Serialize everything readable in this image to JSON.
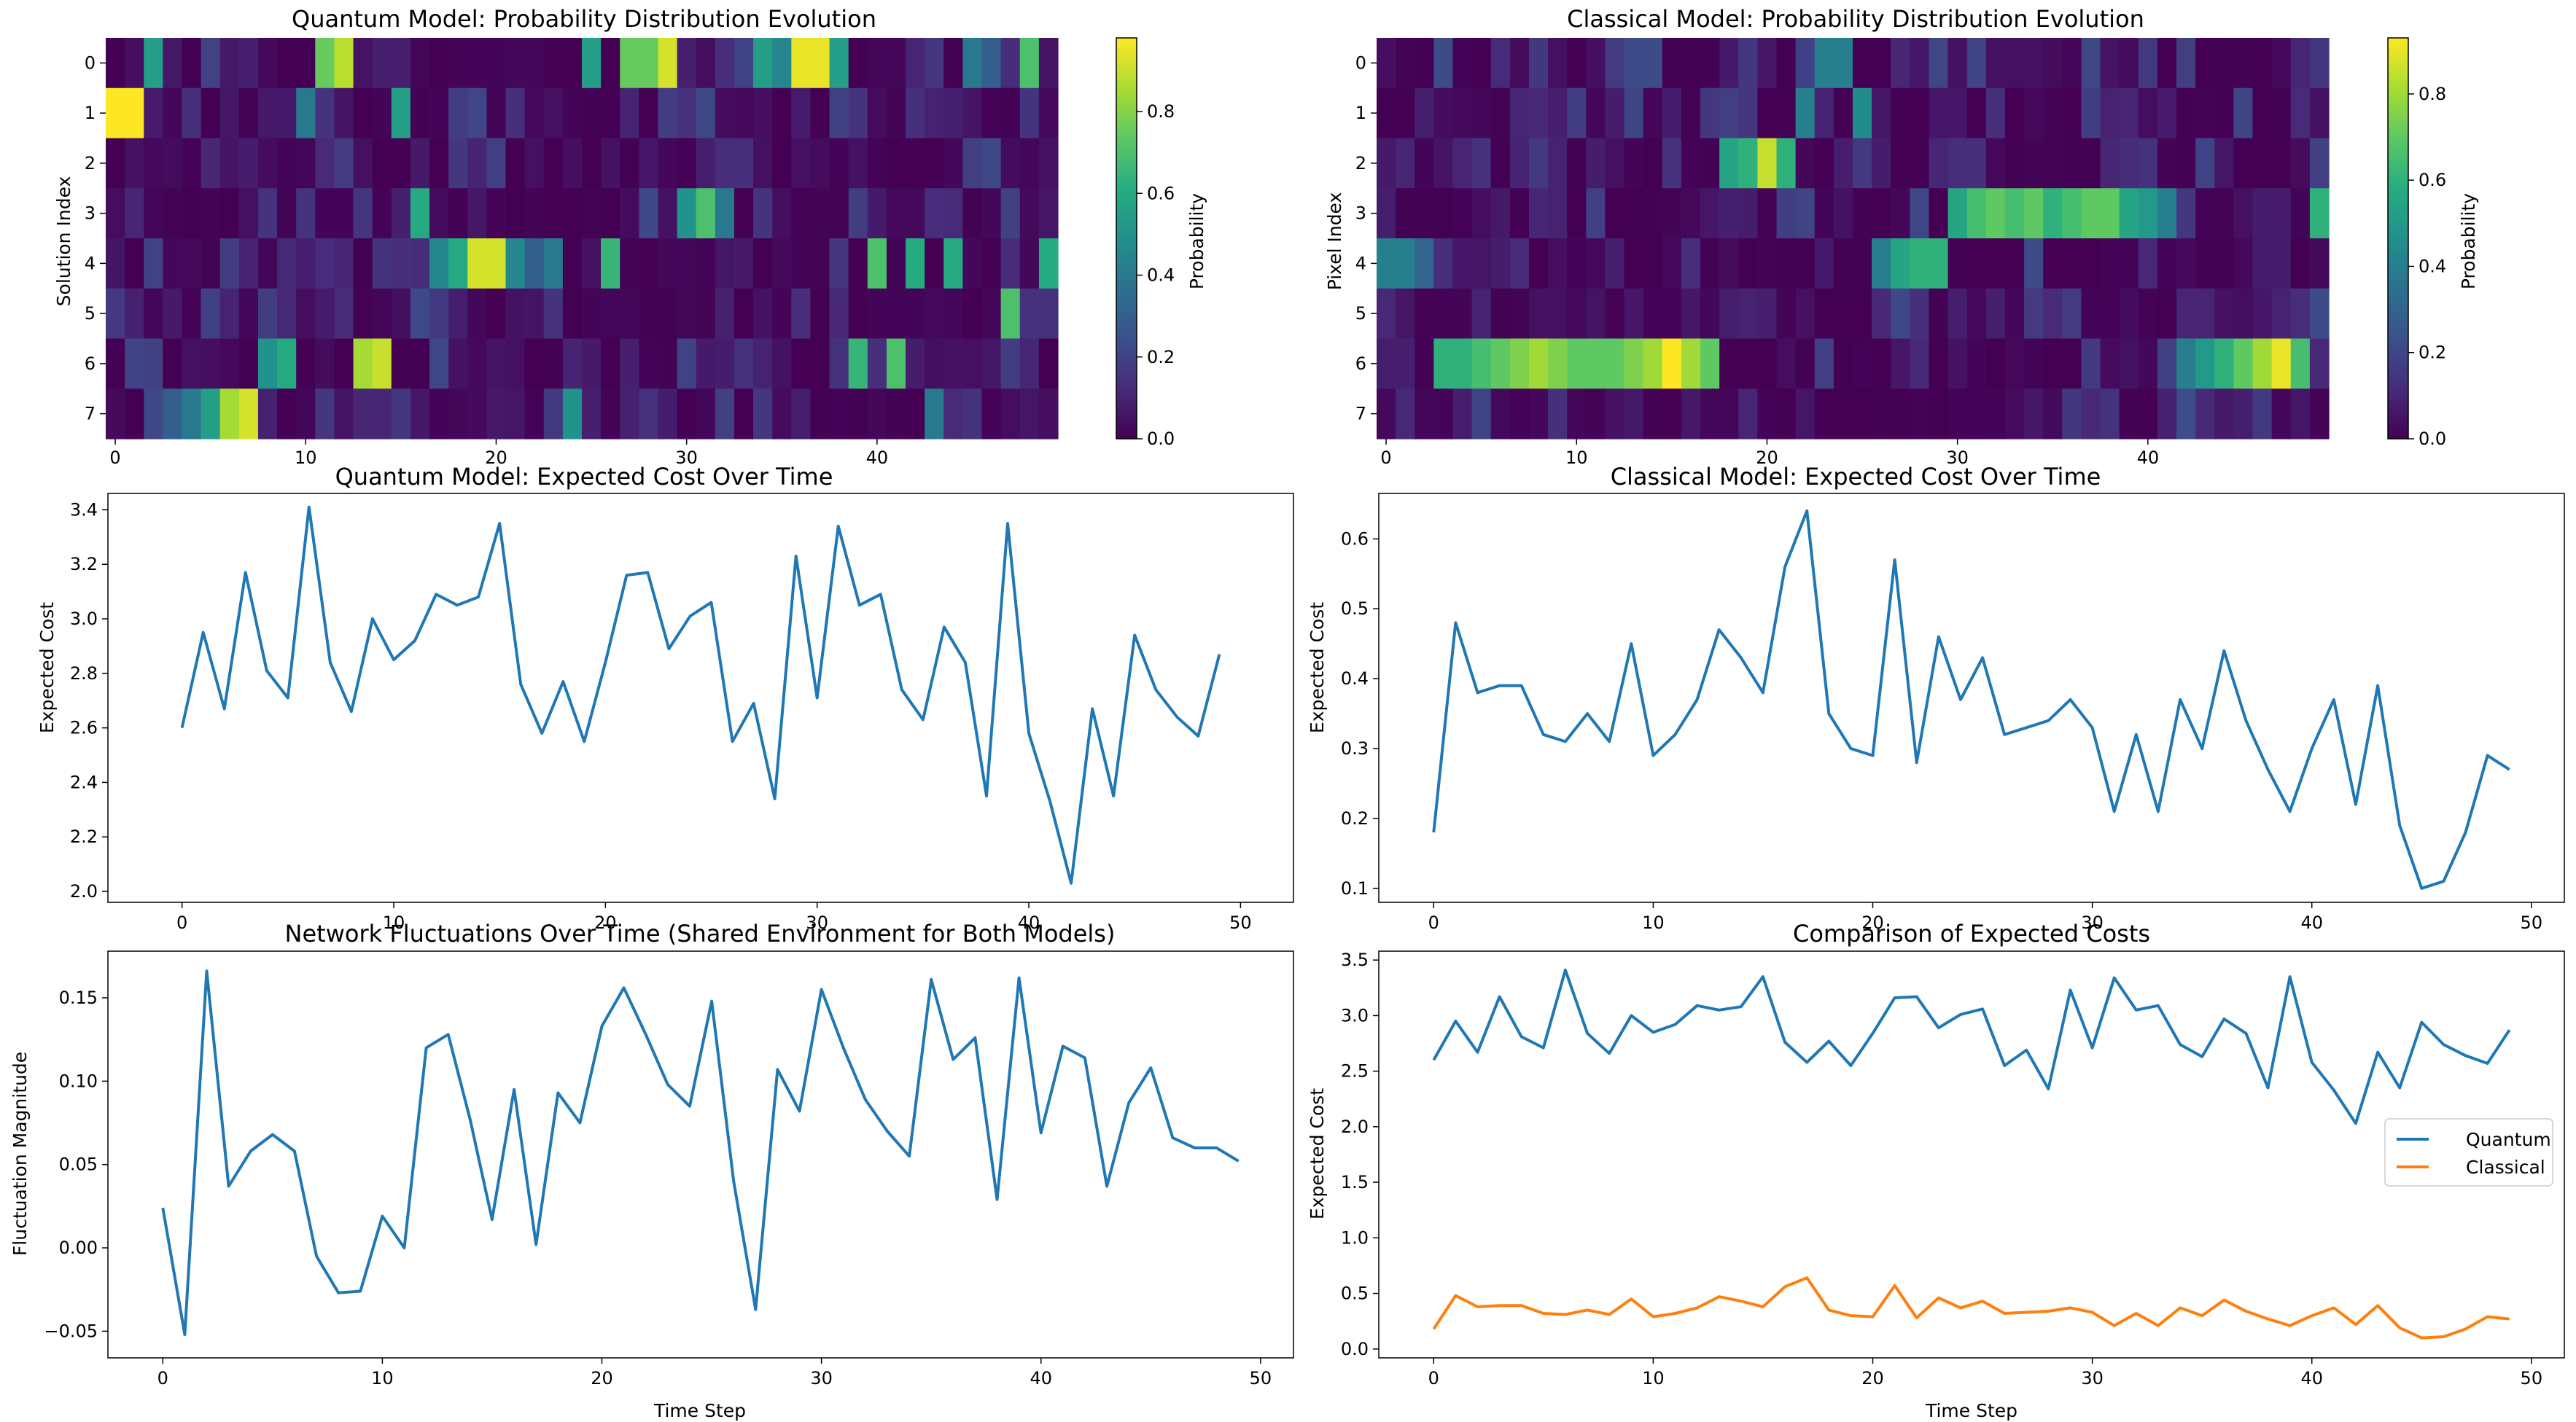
{
  "chart_data": [
    {
      "type": "heatmap",
      "title": "Quantum Model: Probability Distribution Evolution",
      "xlabel": "",
      "ylabel": "Solution Index",
      "xticks": [
        0,
        10,
        20,
        30,
        40
      ],
      "yticks": [
        0,
        1,
        2,
        3,
        4,
        5,
        6,
        7
      ],
      "colorbar": {
        "label": "Probability",
        "ticks": [
          0.0,
          0.2,
          0.4,
          0.6,
          0.8
        ],
        "tick_labels": [
          "0.0",
          "0.2",
          "0.4",
          "0.6",
          "0.8"
        ],
        "range": [
          0,
          0.98
        ]
      },
      "colormap": "viridis",
      "dominant_per_step": [
        1,
        1,
        0,
        7,
        7,
        7,
        7,
        7,
        6,
        6,
        1,
        0,
        0,
        6,
        6,
        1,
        3,
        4,
        4,
        4,
        4,
        4,
        4,
        4,
        7,
        0,
        4,
        0,
        0,
        0,
        3,
        3,
        3,
        0,
        0,
        0,
        0,
        0,
        0,
        6,
        4,
        6,
        4,
        7,
        4,
        0,
        0,
        5,
        0,
        4
      ],
      "dominant_values": [
        0.98,
        0.98,
        0.55,
        0.3,
        0.4,
        0.55,
        0.85,
        0.92,
        0.5,
        0.6,
        0.4,
        0.75,
        0.88,
        0.85,
        0.9,
        0.55,
        0.6,
        0.45,
        0.6,
        0.92,
        0.92,
        0.45,
        0.3,
        0.4,
        0.5,
        0.55,
        0.65,
        0.75,
        0.75,
        0.92,
        0.5,
        0.7,
        0.4,
        0.2,
        0.55,
        0.45,
        0.95,
        0.95,
        0.55,
        0.65,
        0.7,
        0.7,
        0.6,
        0.4,
        0.6,
        0.4,
        0.3,
        0.7,
        0.7,
        0.6
      ]
    },
    {
      "type": "heatmap",
      "title": "Classical Model: Probability Distribution Evolution",
      "xlabel": "",
      "ylabel": "Pixel Index",
      "xticks": [
        0,
        10,
        20,
        30,
        40
      ],
      "yticks": [
        0,
        1,
        2,
        3,
        4,
        5,
        6,
        7
      ],
      "colorbar": {
        "label": "Probability",
        "ticks": [
          0.0,
          0.2,
          0.4,
          0.6,
          0.8
        ],
        "tick_labels": [
          "0.0",
          "0.2",
          "0.4",
          "0.6",
          "0.8"
        ],
        "range": [
          0,
          0.93
        ]
      },
      "colormap": "viridis",
      "dominant_per_step": [
        4,
        4,
        4,
        6,
        6,
        6,
        6,
        6,
        6,
        6,
        6,
        6,
        6,
        6,
        6,
        6,
        6,
        6,
        2,
        2,
        2,
        2,
        1,
        0,
        0,
        1,
        4,
        4,
        4,
        4,
        3,
        3,
        3,
        3,
        3,
        3,
        3,
        3,
        3,
        3,
        3,
        3,
        6,
        6,
        6,
        6,
        6,
        6,
        6,
        3
      ],
      "dominant_values": [
        0.4,
        0.4,
        0.3,
        0.6,
        0.6,
        0.65,
        0.7,
        0.75,
        0.8,
        0.75,
        0.7,
        0.7,
        0.7,
        0.75,
        0.8,
        0.93,
        0.8,
        0.7,
        0.55,
        0.6,
        0.85,
        0.6,
        0.4,
        0.4,
        0.4,
        0.45,
        0.4,
        0.55,
        0.6,
        0.6,
        0.55,
        0.65,
        0.7,
        0.65,
        0.7,
        0.6,
        0.65,
        0.7,
        0.7,
        0.55,
        0.5,
        0.4,
        0.4,
        0.5,
        0.6,
        0.7,
        0.8,
        0.9,
        0.65,
        0.6
      ]
    },
    {
      "type": "line",
      "title": "Quantum Model: Expected Cost Over Time",
      "xlabel": "",
      "ylabel": "Expected Cost",
      "xlim": [
        -3.5,
        52.5
      ],
      "ylim": [
        1.96,
        3.46
      ],
      "xticks": [
        0,
        10,
        20,
        30,
        40,
        50
      ],
      "yticks": [
        2.0,
        2.2,
        2.4,
        2.6,
        2.8,
        3.0,
        3.2,
        3.4
      ],
      "ytick_labels": [
        "2.0",
        "2.2",
        "2.4",
        "2.6",
        "2.8",
        "3.0",
        "3.2",
        "3.4"
      ],
      "series": [
        {
          "color": "#1f77b4",
          "x": [
            0,
            1,
            2,
            3,
            4,
            5,
            6,
            7,
            8,
            9,
            10,
            11,
            12,
            13,
            14,
            15,
            16,
            17,
            18,
            19,
            20,
            21,
            22,
            23,
            24,
            25,
            26,
            27,
            28,
            29,
            30,
            31,
            32,
            33,
            34,
            35,
            36,
            37,
            38,
            39,
            40,
            41,
            42,
            43,
            44,
            45,
            46,
            47,
            48,
            49
          ],
          "values": [
            2.6,
            2.95,
            2.67,
            3.17,
            2.81,
            2.71,
            3.41,
            2.84,
            2.66,
            3.0,
            2.85,
            2.92,
            3.09,
            3.05,
            3.08,
            3.35,
            2.76,
            2.58,
            2.77,
            2.55,
            2.84,
            3.16,
            3.17,
            2.89,
            3.01,
            3.06,
            2.55,
            2.69,
            2.34,
            3.23,
            2.71,
            3.34,
            3.05,
            3.09,
            2.74,
            2.63,
            2.97,
            2.84,
            2.35,
            3.35,
            2.58,
            2.33,
            2.03,
            2.67,
            2.35,
            2.94,
            2.74,
            2.64,
            2.57,
            2.87
          ]
        }
      ]
    },
    {
      "type": "line",
      "title": "Classical Model: Expected Cost Over Time",
      "xlabel": "",
      "ylabel": "Expected Cost",
      "xlim": [
        -2.5,
        51.5
      ],
      "ylim": [
        0.08,
        0.665
      ],
      "xticks": [
        0,
        10,
        20,
        30,
        40,
        50
      ],
      "yticks": [
        0.1,
        0.2,
        0.3,
        0.4,
        0.5,
        0.6
      ],
      "ytick_labels": [
        "0.1",
        "0.2",
        "0.3",
        "0.4",
        "0.5",
        "0.6"
      ],
      "series": [
        {
          "color": "#1f77b4",
          "x": [
            0,
            1,
            2,
            3,
            4,
            5,
            6,
            7,
            8,
            9,
            10,
            11,
            12,
            13,
            14,
            15,
            16,
            17,
            18,
            19,
            20,
            21,
            22,
            23,
            24,
            25,
            26,
            27,
            28,
            29,
            30,
            31,
            32,
            33,
            34,
            35,
            36,
            37,
            38,
            39,
            40,
            41,
            42,
            43,
            44,
            45,
            46,
            47,
            48,
            49
          ],
          "values": [
            0.18,
            0.48,
            0.38,
            0.39,
            0.39,
            0.32,
            0.31,
            0.35,
            0.31,
            0.45,
            0.29,
            0.32,
            0.37,
            0.47,
            0.43,
            0.38,
            0.56,
            0.64,
            0.35,
            0.3,
            0.29,
            0.57,
            0.28,
            0.46,
            0.37,
            0.43,
            0.32,
            0.33,
            0.34,
            0.37,
            0.33,
            0.21,
            0.32,
            0.21,
            0.37,
            0.3,
            0.44,
            0.34,
            0.27,
            0.21,
            0.3,
            0.37,
            0.22,
            0.39,
            0.19,
            0.1,
            0.11,
            0.18,
            0.29,
            0.27
          ]
        }
      ]
    },
    {
      "type": "line",
      "title": "Network Fluctuations Over Time (Shared Environment for Both Models)",
      "xlabel": "Time Step",
      "ylabel": "Fluctuation Magnitude",
      "xlim": [
        -2.5,
        51.5
      ],
      "ylim": [
        -0.066,
        0.178
      ],
      "xticks": [
        0,
        10,
        20,
        30,
        40,
        50
      ],
      "yticks": [
        -0.05,
        0.0,
        0.05,
        0.1,
        0.15
      ],
      "ytick_labels": [
        "−0.05",
        "0.00",
        "0.05",
        "0.10",
        "0.15"
      ],
      "series": [
        {
          "color": "#1f77b4",
          "x": [
            0,
            1,
            2,
            3,
            4,
            5,
            6,
            7,
            8,
            9,
            10,
            11,
            12,
            13,
            14,
            15,
            16,
            17,
            18,
            19,
            20,
            21,
            22,
            23,
            24,
            25,
            26,
            27,
            28,
            29,
            30,
            31,
            32,
            33,
            34,
            35,
            36,
            37,
            38,
            39,
            40,
            41,
            42,
            43,
            44,
            45,
            46,
            47,
            48,
            49
          ],
          "values": [
            0.024,
            -0.052,
            0.166,
            0.037,
            0.058,
            0.068,
            0.058,
            -0.005,
            -0.027,
            -0.026,
            0.019,
            0.0,
            0.12,
            0.128,
            0.077,
            0.017,
            0.095,
            0.002,
            0.093,
            0.075,
            0.133,
            0.156,
            0.128,
            0.098,
            0.085,
            0.148,
            0.04,
            -0.037,
            0.107,
            0.082,
            0.155,
            0.12,
            0.089,
            0.07,
            0.055,
            0.161,
            0.113,
            0.126,
            0.029,
            0.162,
            0.069,
            0.121,
            0.114,
            0.037,
            0.087,
            0.108,
            0.066,
            0.06,
            0.06,
            0.052
          ]
        }
      ]
    },
    {
      "type": "line",
      "title": "Comparison of Expected Costs",
      "xlabel": "Time Step",
      "ylabel": "Expected Cost",
      "xlim": [
        -2.5,
        51.5
      ],
      "ylim": [
        -0.08,
        3.58
      ],
      "xticks": [
        0,
        10,
        20,
        30,
        40,
        50
      ],
      "yticks": [
        0.0,
        0.5,
        1.0,
        1.5,
        2.0,
        2.5,
        3.0,
        3.5
      ],
      "ytick_labels": [
        "0.0",
        "0.5",
        "1.0",
        "1.5",
        "2.0",
        "2.5",
        "3.0",
        "3.5"
      ],
      "legend": "right",
      "series": [
        {
          "name": "Quantum",
          "color": "#1f77b4",
          "x": [
            0,
            1,
            2,
            3,
            4,
            5,
            6,
            7,
            8,
            9,
            10,
            11,
            12,
            13,
            14,
            15,
            16,
            17,
            18,
            19,
            20,
            21,
            22,
            23,
            24,
            25,
            26,
            27,
            28,
            29,
            30,
            31,
            32,
            33,
            34,
            35,
            36,
            37,
            38,
            39,
            40,
            41,
            42,
            43,
            44,
            45,
            46,
            47,
            48,
            49
          ],
          "values": [
            2.6,
            2.95,
            2.67,
            3.17,
            2.81,
            2.71,
            3.41,
            2.84,
            2.66,
            3.0,
            2.85,
            2.92,
            3.09,
            3.05,
            3.08,
            3.35,
            2.76,
            2.58,
            2.77,
            2.55,
            2.84,
            3.16,
            3.17,
            2.89,
            3.01,
            3.06,
            2.55,
            2.69,
            2.34,
            3.23,
            2.71,
            3.34,
            3.05,
            3.09,
            2.74,
            2.63,
            2.97,
            2.84,
            2.35,
            3.35,
            2.58,
            2.33,
            2.03,
            2.67,
            2.35,
            2.94,
            2.74,
            2.64,
            2.57,
            2.87
          ]
        },
        {
          "name": "Classical",
          "color": "#ff7f0e",
          "x": [
            0,
            1,
            2,
            3,
            4,
            5,
            6,
            7,
            8,
            9,
            10,
            11,
            12,
            13,
            14,
            15,
            16,
            17,
            18,
            19,
            20,
            21,
            22,
            23,
            24,
            25,
            26,
            27,
            28,
            29,
            30,
            31,
            32,
            33,
            34,
            35,
            36,
            37,
            38,
            39,
            40,
            41,
            42,
            43,
            44,
            45,
            46,
            47,
            48,
            49
          ],
          "values": [
            0.18,
            0.48,
            0.38,
            0.39,
            0.39,
            0.32,
            0.31,
            0.35,
            0.31,
            0.45,
            0.29,
            0.32,
            0.37,
            0.47,
            0.43,
            0.38,
            0.56,
            0.64,
            0.35,
            0.3,
            0.29,
            0.57,
            0.28,
            0.46,
            0.37,
            0.43,
            0.32,
            0.33,
            0.34,
            0.37,
            0.33,
            0.21,
            0.32,
            0.21,
            0.37,
            0.3,
            0.44,
            0.34,
            0.27,
            0.21,
            0.3,
            0.37,
            0.22,
            0.39,
            0.19,
            0.1,
            0.11,
            0.18,
            0.29,
            0.27
          ]
        }
      ]
    }
  ]
}
